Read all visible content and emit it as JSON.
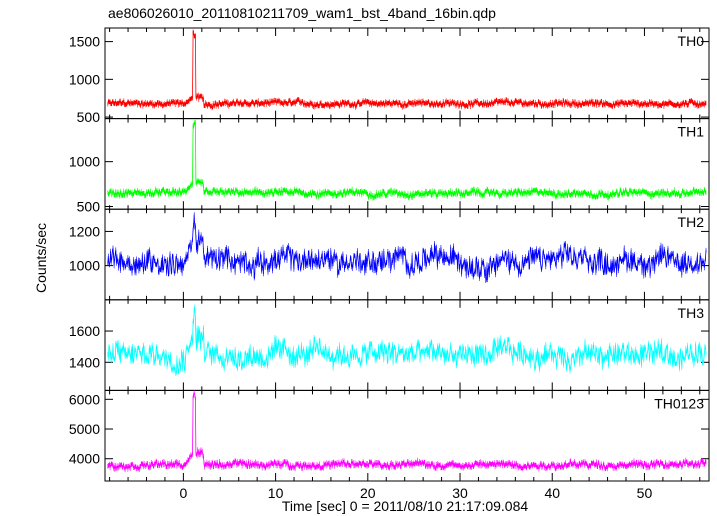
{
  "chart_data": {
    "type": "line",
    "title": "ae806026010_20110810211709_wam1_bst_4band_16bin.qdp",
    "xlabel": "Time [sec] 0 = 2011/08/10 21:17:09.084",
    "ylabel": "Counts/sec",
    "xlim": [
      -8.5,
      57
    ],
    "x_ticks": [
      0,
      10,
      20,
      30,
      40,
      50
    ],
    "x_tick_labels": [
      "0",
      "10",
      "20",
      "30",
      "40",
      "50"
    ],
    "burst_time": 1.0,
    "panels": [
      {
        "name": "TH0",
        "color": "#ff0000",
        "ylim": [
          480,
          1680
        ],
        "y_ticks": [
          500,
          1000,
          1500
        ],
        "y_tick_labels": [
          "500",
          "1000",
          "1500"
        ],
        "baseline": 680,
        "noise": 35,
        "burst_peak": 1640,
        "burst_start_level": 760
      },
      {
        "name": "TH1",
        "color": "#00ff00",
        "ylim": [
          470,
          1480
        ],
        "y_ticks": [
          500,
          1000
        ],
        "y_tick_labels": [
          "500",
          "1000"
        ],
        "baseline": 650,
        "noise": 35,
        "burst_peak": 1460,
        "burst_start_level": 760
      },
      {
        "name": "TH2",
        "color": "#0000ff",
        "ylim": [
          800,
          1330
        ],
        "y_ticks": [
          1000,
          1200
        ],
        "y_tick_labels": [
          "1000",
          "1200"
        ],
        "baseline": 1030,
        "noise": 70,
        "burst_peak": 1320,
        "burst_start_level": 1150
      },
      {
        "name": "TH3",
        "color": "#00ffff",
        "ylim": [
          1220,
          1800
        ],
        "y_ticks": [
          1400,
          1600
        ],
        "y_tick_labels": [
          "1400",
          "1600"
        ],
        "baseline": 1450,
        "noise": 75,
        "burst_peak": 1760,
        "burst_start_level": 1560
      },
      {
        "name": "TH0123",
        "color": "#ff00ff",
        "ylim": [
          3250,
          6300
        ],
        "y_ticks": [
          4000,
          5000,
          6000
        ],
        "y_tick_labels": [
          "4000",
          "5000",
          "6000"
        ],
        "baseline": 3800,
        "noise": 110,
        "burst_peak": 6250,
        "burst_start_level": 4200
      }
    ]
  }
}
